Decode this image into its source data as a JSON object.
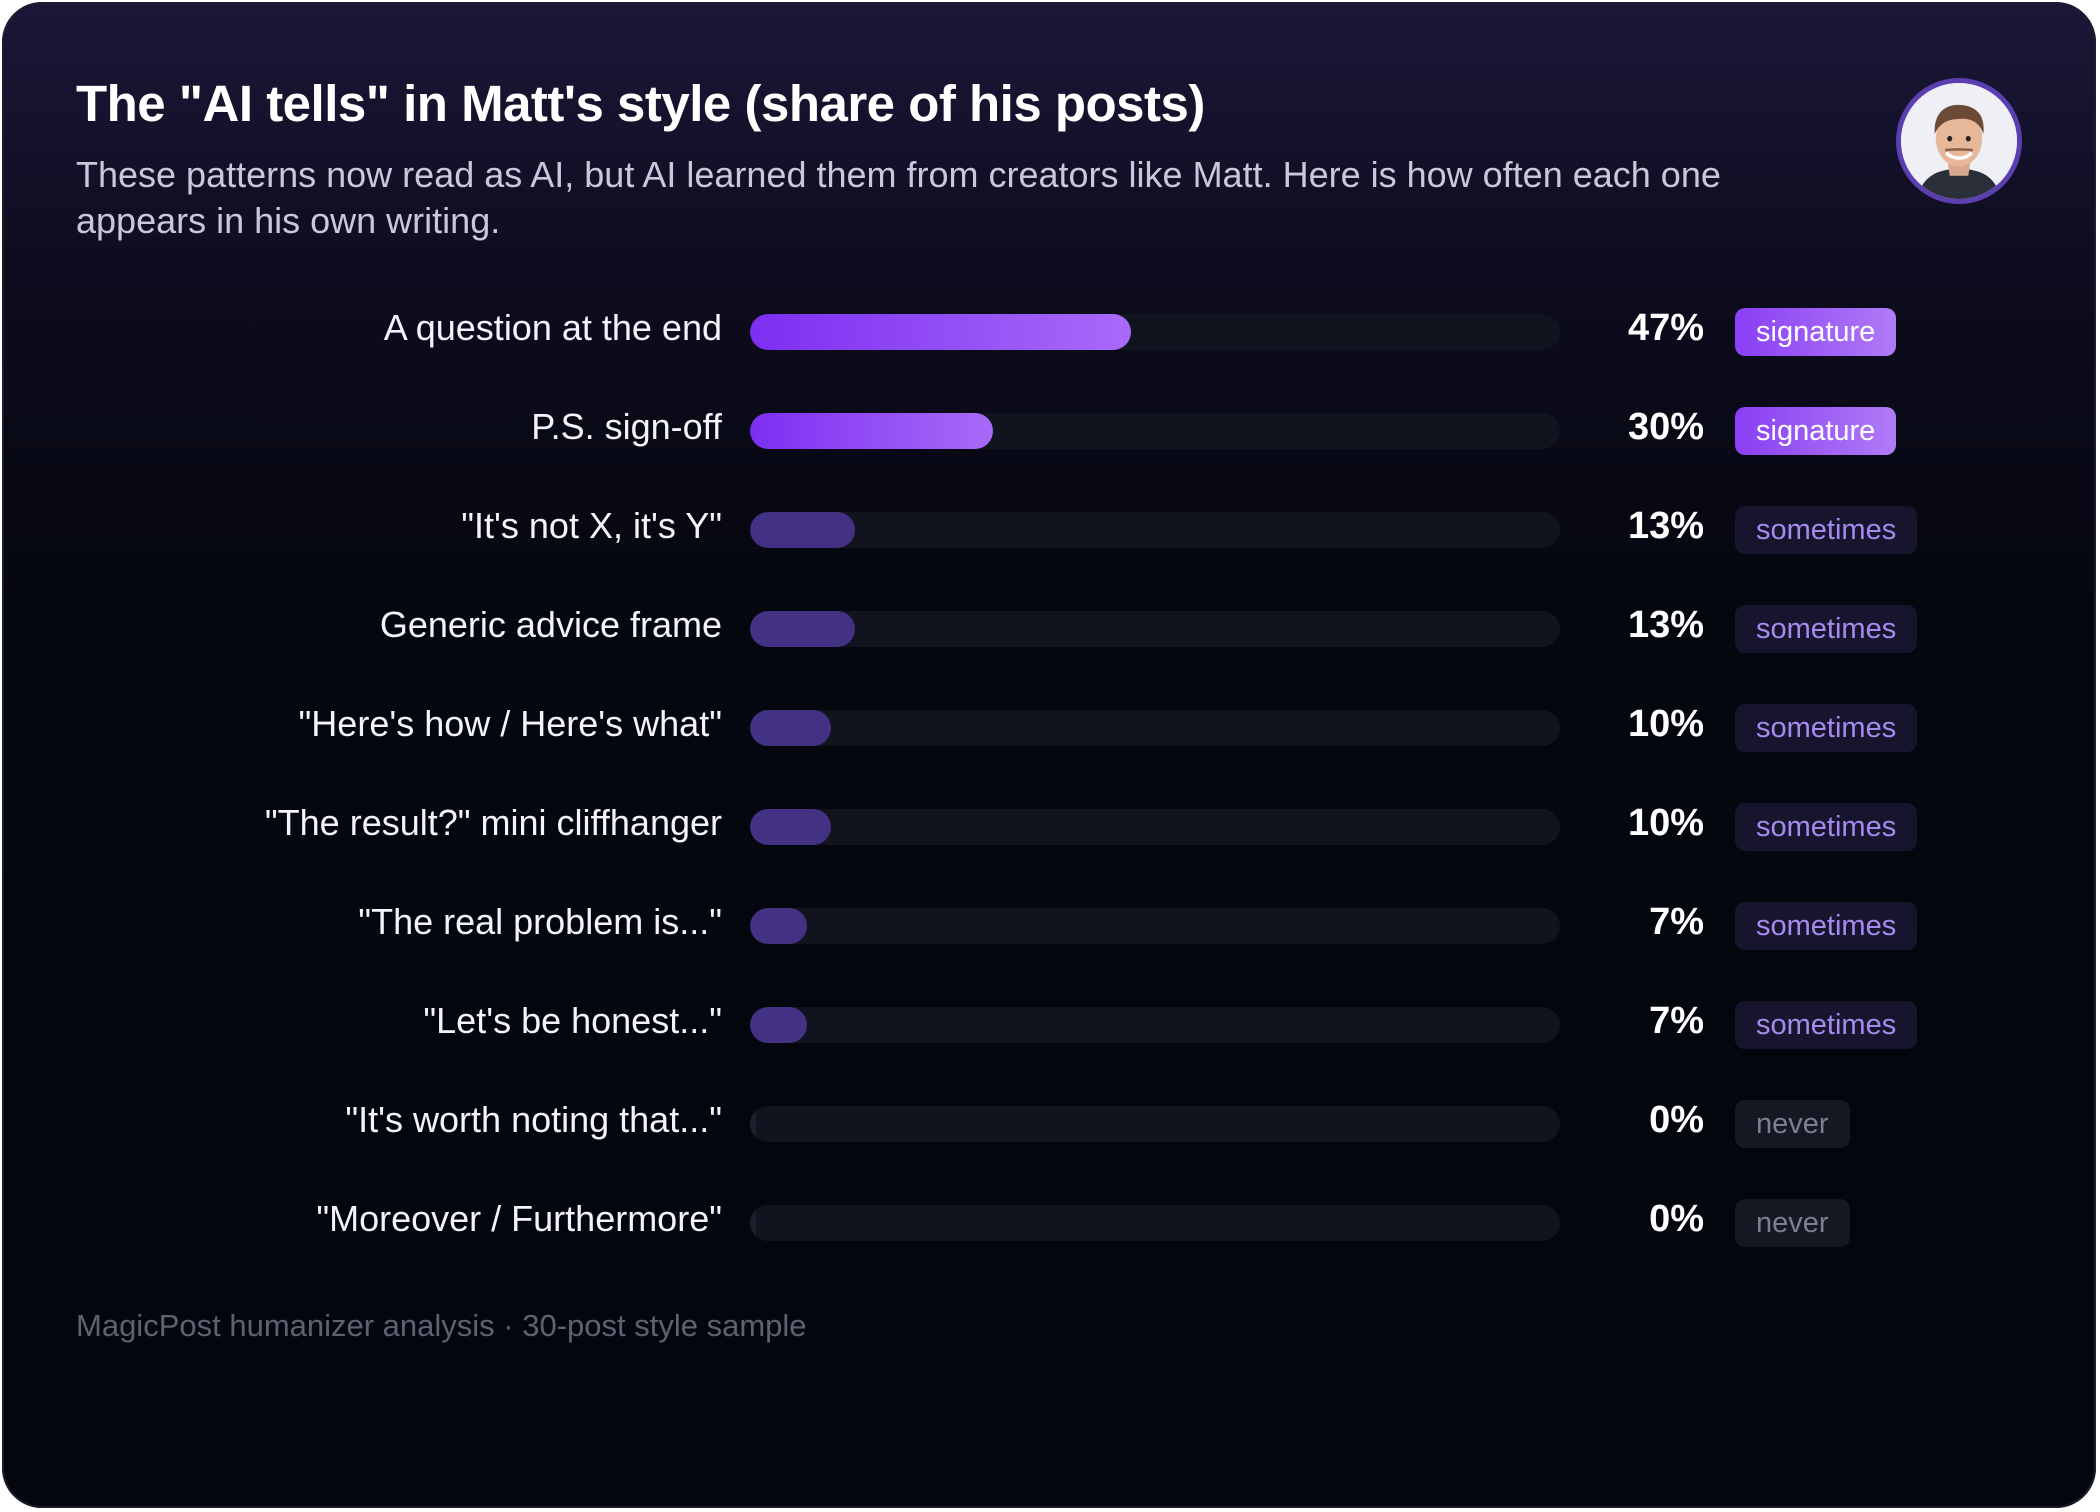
{
  "header": {
    "title": "The \"AI tells\" in Matt's style (share of his posts)",
    "subtitle": "These patterns now read as AI, but AI learned them from creators like Matt. Here is how often each one appears in his own writing."
  },
  "avatar": {
    "icon": "person-portrait-icon",
    "ring_color": "#5b3fb0"
  },
  "colors": {
    "signature_start": "#7c2ff2",
    "signature_end": "#a96af8",
    "sometimes": "#433283",
    "track": "#11131f",
    "background": "#04060d"
  },
  "chart_data": {
    "type": "bar",
    "orientation": "horizontal",
    "xlim": [
      0,
      100
    ],
    "unit": "%",
    "categories": [
      "A question at the end",
      "P.S. sign-off",
      "\"It's not X, it's Y\"",
      "Generic advice frame",
      "\"Here's how / Here's what\"",
      "\"The result?\" mini cliffhanger",
      "\"The real problem is...\"",
      "\"Let's be honest...\"",
      "\"It's worth noting that...\"",
      "\"Moreover / Furthermore\""
    ],
    "values": [
      47,
      30,
      13,
      13,
      10,
      10,
      7,
      7,
      0,
      0
    ],
    "value_labels": [
      "47%",
      "30%",
      "13%",
      "13%",
      "10%",
      "10%",
      "7%",
      "7%",
      "0%",
      "0%"
    ],
    "badges": [
      "signature",
      "signature",
      "sometimes",
      "sometimes",
      "sometimes",
      "sometimes",
      "sometimes",
      "sometimes",
      "never",
      "never"
    ]
  },
  "footer": {
    "text": "MagicPost humanizer analysis · 30-post style sample"
  }
}
